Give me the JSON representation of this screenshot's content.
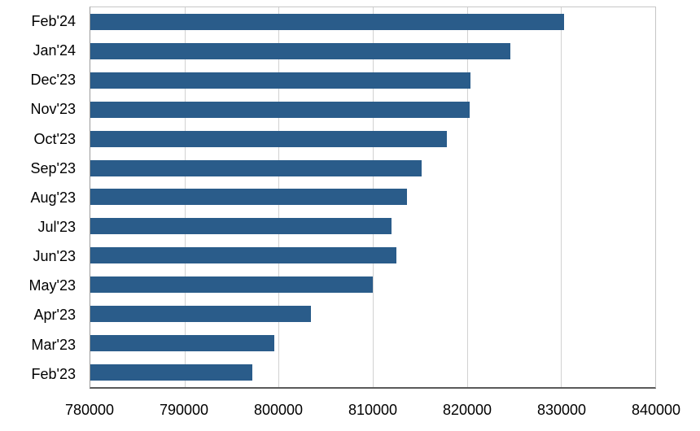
{
  "chart_data": {
    "type": "bar",
    "orientation": "horizontal",
    "title": "",
    "xlabel": "",
    "ylabel": "",
    "grid": true,
    "legend": false,
    "bar_color": "#2a5c8a",
    "gridline_color": "#d2d2d2",
    "xlim": [
      780000,
      840000
    ],
    "x_ticks": [
      780000,
      790000,
      800000,
      810000,
      820000,
      830000,
      840000
    ],
    "categories": [
      "Feb'24",
      "Jan'24",
      "Dec'23",
      "Nov'23",
      "Oct'23",
      "Sep'23",
      "Aug'23",
      "Jul'23",
      "Jun'23",
      "May'23",
      "Apr'23",
      "Mar'23",
      "Feb'23"
    ],
    "values": [
      830300,
      824600,
      820400,
      820300,
      817900,
      815200,
      813600,
      812000,
      812500,
      810000,
      803400,
      799500,
      797200
    ]
  }
}
